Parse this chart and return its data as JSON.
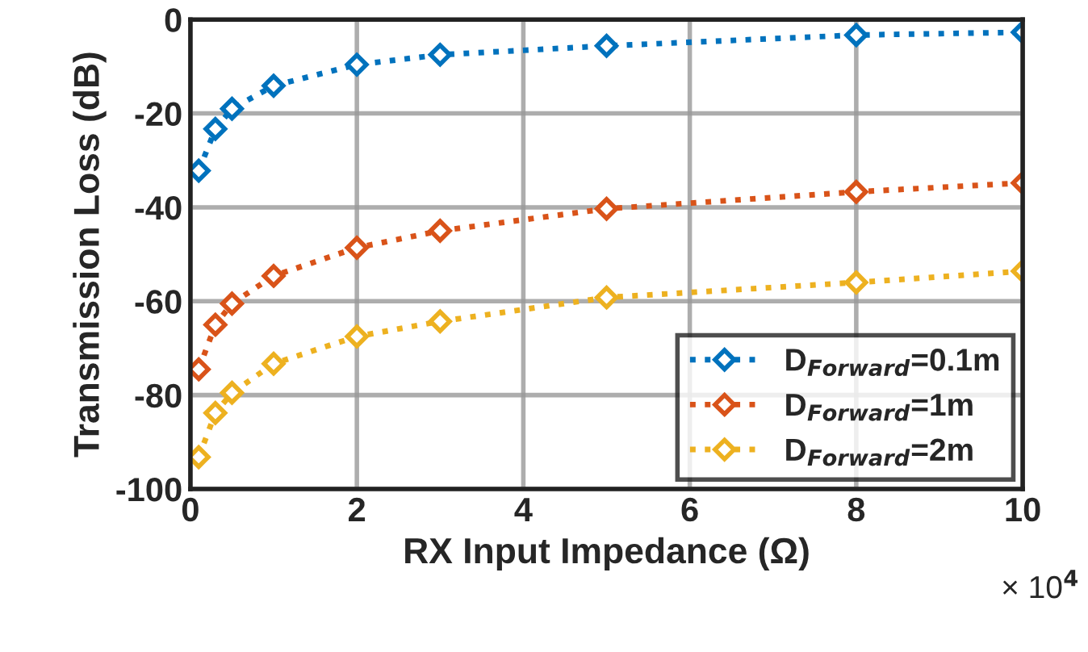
{
  "chart_data": {
    "type": "line",
    "xlabel": "RX Input Impedance (Ω)",
    "ylabel": "Transmission Loss (dB)",
    "annotations": [
      "× 10$^{4}$"
    ],
    "x": [
      0.1,
      0.3,
      0.5,
      1,
      2,
      3,
      5,
      8,
      10
    ],
    "series": [
      {
        "name": "D$_{Forward}$=0.1m",
        "color": "#0072bd",
        "values": [
          -32.2,
          -23.3,
          -19,
          -14.1,
          -9.6,
          -7.5,
          -5.6,
          -3.3,
          -2.7
        ]
      },
      {
        "name": "D$_{Forward}$=1m",
        "color": "#d95319",
        "values": [
          -74.5,
          -65,
          -60.5,
          -54.6,
          -48.6,
          -45,
          -40.3,
          -36.7,
          -34.8
        ]
      },
      {
        "name": "D$_{Forward}$=2m",
        "color": "#edb120",
        "values": [
          -93.2,
          -83.8,
          -79.5,
          -73.3,
          -67.5,
          -64.3,
          -59.2,
          -56,
          -53.6
        ]
      }
    ],
    "xlim": [
      0,
      10
    ],
    "xticks": [
      0,
      2,
      4,
      6,
      8,
      10
    ],
    "ylim": [
      -100,
      0
    ],
    "yticks": [
      -100,
      -80,
      -60,
      -40,
      -20,
      0
    ],
    "grid": true,
    "legend": "bottom right",
    "marker": "diamond",
    "line_style": "dotted"
  }
}
